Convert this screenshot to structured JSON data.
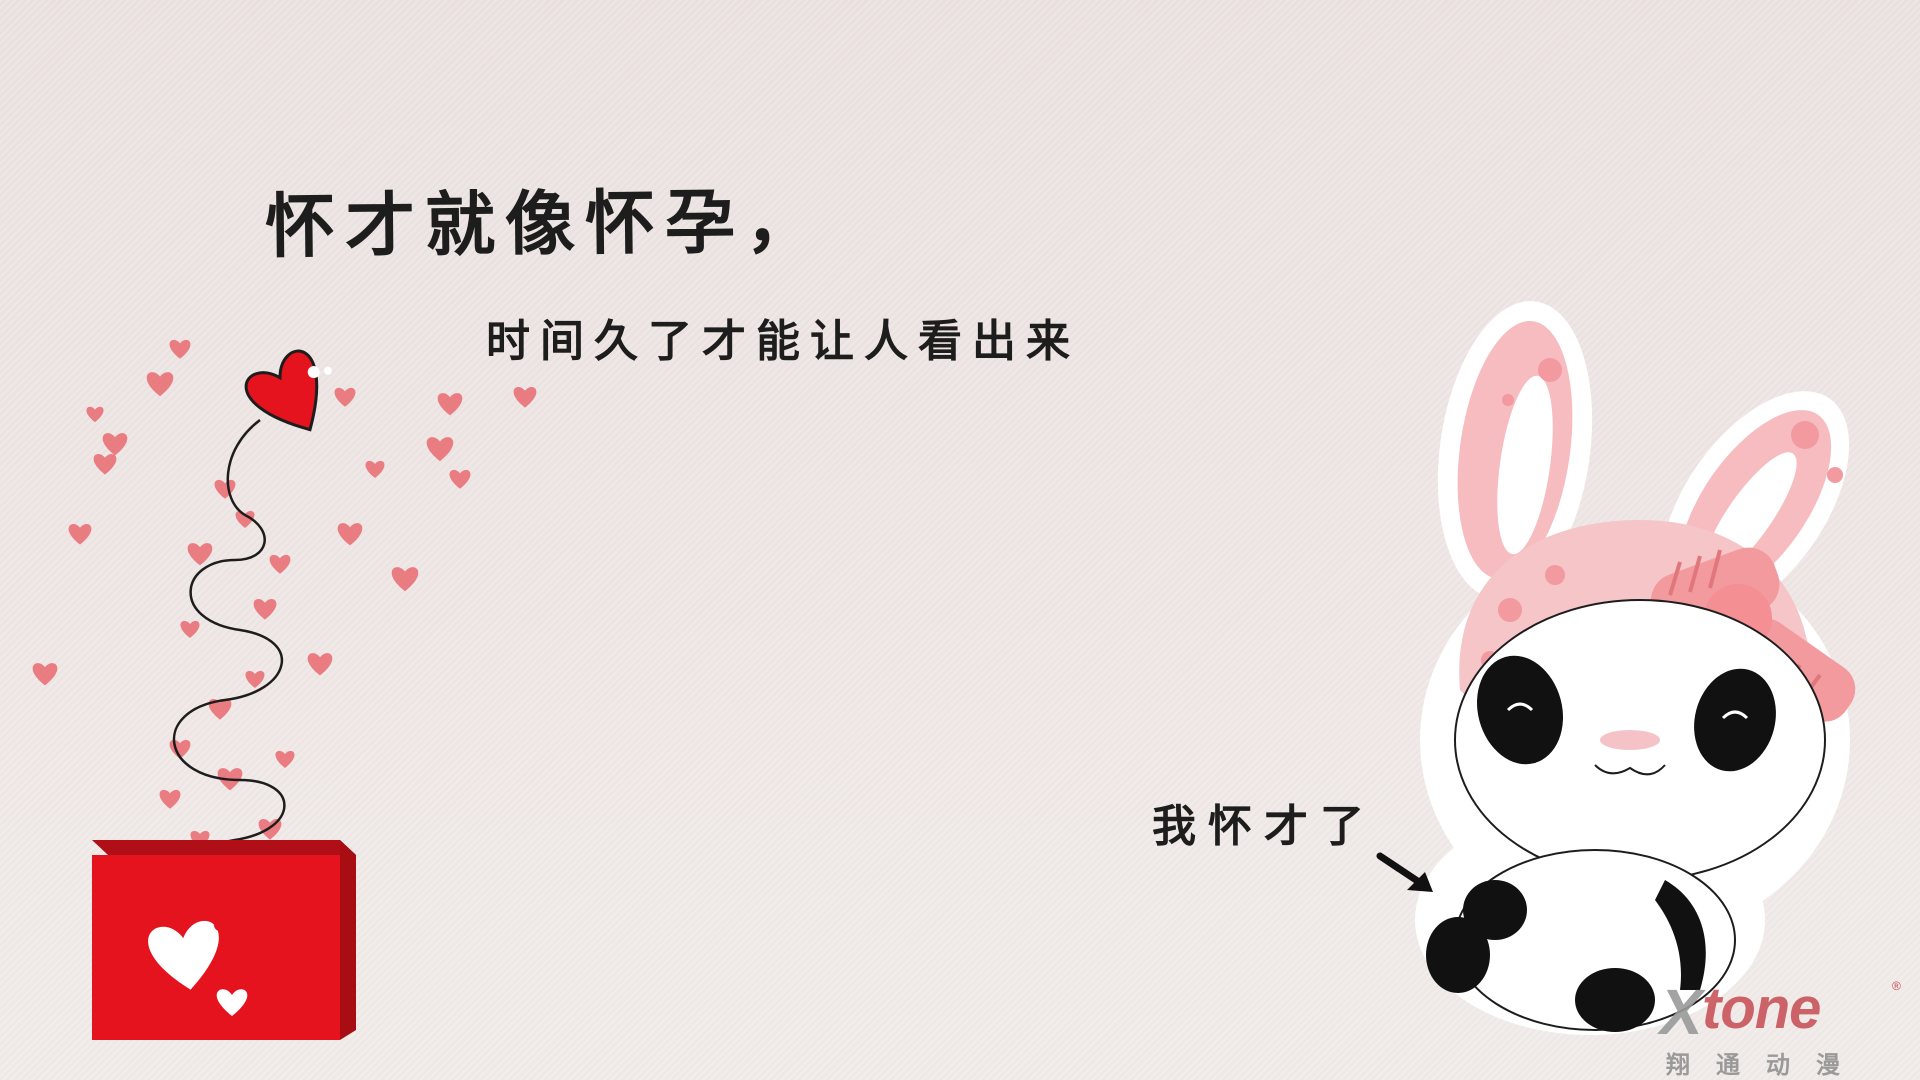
{
  "headline": "怀才就像怀孕，",
  "subline": "时间久了才能让人看出来",
  "speech_bubble": "我怀才了",
  "watermark": {
    "brand": "tone",
    "brand_mark": "X",
    "registered": "®",
    "subtitle": "翔通动漫"
  },
  "icons": [
    "gift-box-icon",
    "spring-heart-icon",
    "panda-bunny-character",
    "arrow-icon"
  ],
  "colors": {
    "background": "#ede4e2",
    "gift_red": "#e5131d",
    "heart_pink": "#e96a70",
    "ear_pink": "#f6bcc0",
    "text": "#1d1d1d",
    "watermark_red": "#c64b51"
  }
}
